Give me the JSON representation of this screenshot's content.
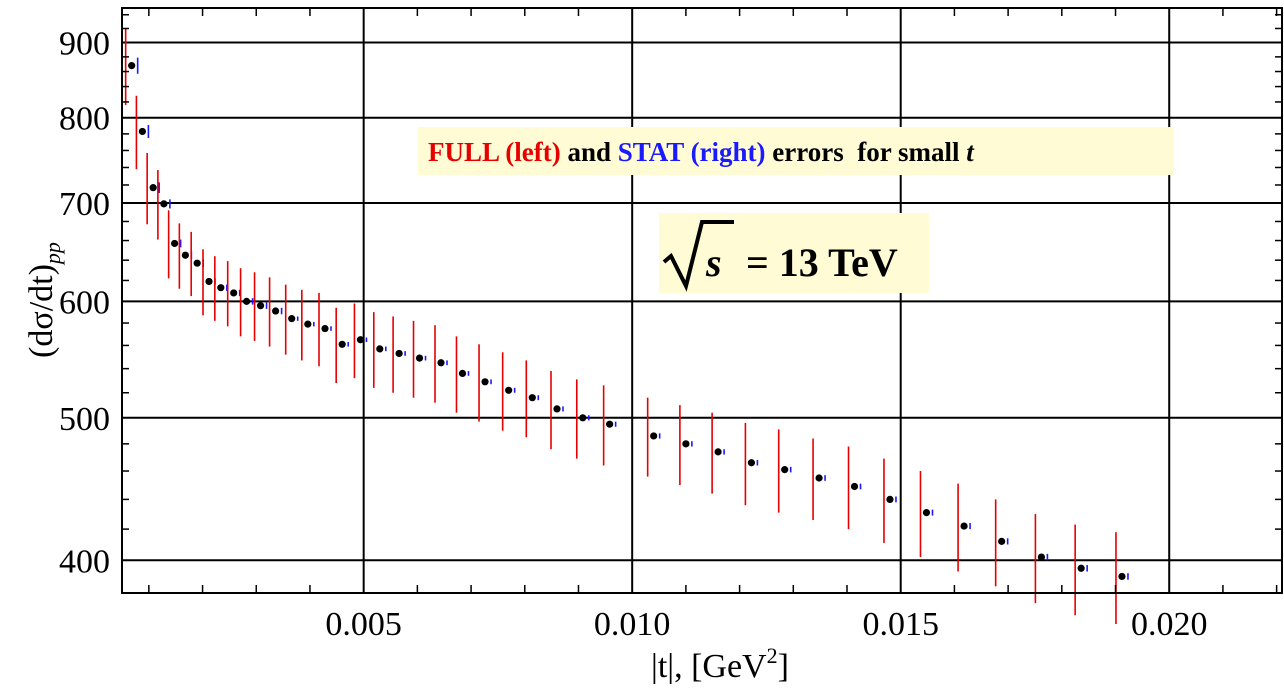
{
  "chart_data": {
    "type": "scatter",
    "xlabel": "|t|, [GeV²]",
    "xlabel_main": "|t|, [GeV",
    "xlabel_sup": "2",
    "xlabel_tail": "]",
    "ylabel": "(dσ/dt)pp",
    "ylabel_main": "(dσ/dt)",
    "ylabel_sub": "pp",
    "y_scale": "log",
    "xlim": [
      0.0005,
      0.0221
    ],
    "ylim": [
      380,
      950
    ],
    "grid": true,
    "x_ticks": [
      {
        "value": 0.005,
        "label": "0.005"
      },
      {
        "value": 0.01,
        "label": "0.010"
      },
      {
        "value": 0.015,
        "label": "0.015"
      },
      {
        "value": 0.02,
        "label": "0.020"
      }
    ],
    "y_ticks": [
      {
        "value": 400,
        "label": "400"
      },
      {
        "value": 500,
        "label": "500"
      },
      {
        "value": 600,
        "label": "600"
      },
      {
        "value": 700,
        "label": "700"
      },
      {
        "value": 800,
        "label": "800"
      },
      {
        "value": 900,
        "label": "900"
      }
    ],
    "annotation": {
      "parts": [
        {
          "text": "FULL (left)",
          "color": "#e60000"
        },
        {
          "text": " and ",
          "color": "#000000"
        },
        {
          "text": "STAT (right)",
          "color": "#1a1aff"
        },
        {
          "text": " errors  for small ",
          "color": "#000000"
        },
        {
          "text": "t",
          "color": "#000000",
          "italic": true
        }
      ]
    },
    "energy_label": {
      "radicand": "s",
      "text": "= 13 TeV"
    },
    "colors": {
      "full_error": "#e60000",
      "stat_error": "#1a1aff",
      "point": "#000000",
      "grid": "#000000"
    },
    "series": [
      {
        "name": "FULL (left)",
        "full_err": [
          52,
          45,
          40,
          38,
          35,
          33,
          32,
          32,
          31,
          31,
          32,
          32,
          32,
          32,
          32,
          33,
          33,
          33,
          33,
          33,
          33,
          33,
          32,
          32,
          32,
          31,
          31,
          31,
          31,
          30,
          30,
          30,
          30,
          30,
          29,
          29,
          29,
          29,
          29,
          28,
          28,
          28,
          28
        ],
        "stat_err": [
          11,
          8,
          6,
          5,
          4,
          4,
          4,
          3,
          3,
          3,
          3,
          3,
          3,
          2,
          2,
          2,
          2,
          2,
          2,
          2,
          2,
          2,
          2,
          2,
          2,
          2,
          2,
          2,
          2,
          2,
          2,
          2,
          2,
          2,
          2,
          2,
          2,
          2,
          2,
          2,
          2,
          2,
          2
        ],
        "x": [
          0.00068,
          0.00088,
          0.00108,
          0.00128,
          0.00148,
          0.00168,
          0.0019,
          0.00212,
          0.00234,
          0.00258,
          0.00282,
          0.00308,
          0.00336,
          0.00366,
          0.00396,
          0.00428,
          0.0046,
          0.00494,
          0.0053,
          0.00566,
          0.00604,
          0.00644,
          0.00684,
          0.00726,
          0.0077,
          0.00814,
          0.0086,
          0.00908,
          0.00958,
          0.0104,
          0.011,
          0.0116,
          0.01222,
          0.01284,
          0.01348,
          0.01414,
          0.0148,
          0.01548,
          0.01618,
          0.01688,
          0.01762,
          0.01836,
          0.01912
        ],
        "y": [
          868,
          783,
          717,
          699,
          657,
          645,
          637,
          619,
          613,
          608,
          600,
          596,
          591,
          584,
          579,
          575,
          561,
          565,
          557,
          553,
          549,
          545,
          536,
          529,
          522,
          516,
          507,
          500,
          495,
          486,
          480,
          474,
          466,
          461,
          455,
          449,
          440,
          431,
          422,
          412,
          402,
          395,
          390
        ]
      }
    ]
  }
}
